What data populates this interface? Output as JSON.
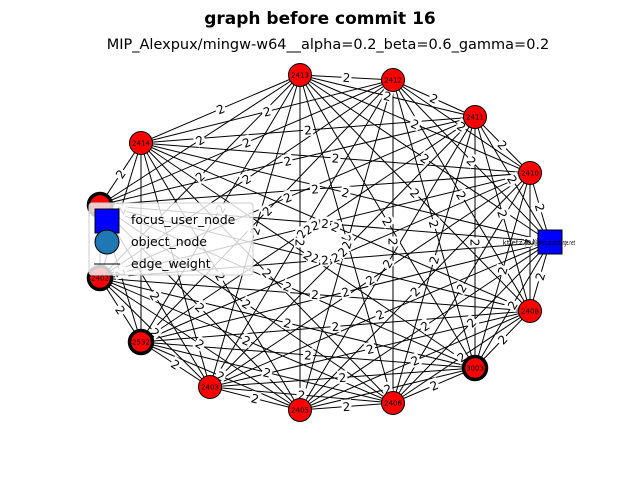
{
  "figure": {
    "title": "graph before commit 16",
    "subtitle": "MIP_Alexpux/mingw-w64__alpha=0.2_beta=0.6_gamma=0.2"
  },
  "colors": {
    "object_node": "#ff0000",
    "focus_node": "#0000ff",
    "edge": "#000000",
    "legend_object": "#1f77b4"
  },
  "nodes": [
    {
      "id": "2413",
      "label": "2413"
    },
    {
      "id": "2412",
      "label": "2412"
    },
    {
      "id": "2411",
      "label": "2411"
    },
    {
      "id": "2410",
      "label": "2410"
    },
    {
      "id": "2408",
      "label": "2408"
    },
    {
      "id": "3003",
      "label": "3003"
    },
    {
      "id": "2406",
      "label": "2406"
    },
    {
      "id": "2405",
      "label": "2405"
    },
    {
      "id": "2403",
      "label": "2403"
    },
    {
      "id": "2532",
      "label": "2532"
    },
    {
      "id": "2402",
      "label": "2402"
    },
    {
      "id": "2407",
      "label": "2407"
    },
    {
      "id": "2414",
      "label": "2414"
    }
  ],
  "focus_node": {
    "left_label": "ktietz70",
    "right_label": "jon_y@users.sourceforge.net"
  },
  "edge_weight_label": "2",
  "legend": {
    "items": [
      {
        "label": "focus_user_node",
        "icon": "square-marker-icon"
      },
      {
        "label": "object_node",
        "icon": "circle-marker-icon"
      },
      {
        "label": "edge_weight",
        "icon": "line-marker-icon"
      }
    ]
  }
}
